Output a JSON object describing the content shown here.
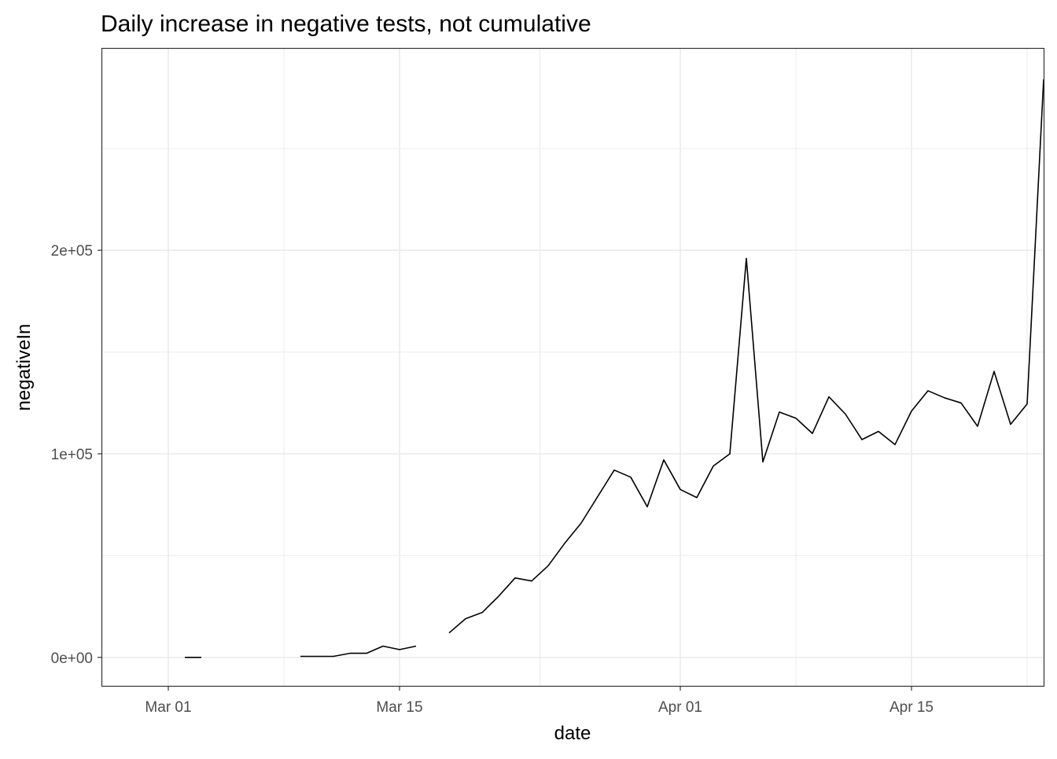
{
  "chart_data": {
    "type": "line",
    "title": "Daily increase in negative tests, not cumulative",
    "xlabel": "date",
    "ylabel": "negativeIn",
    "x_ticks": [
      {
        "date": "2020-03-01",
        "label": "Mar 01"
      },
      {
        "date": "2020-03-15",
        "label": "Mar 15"
      },
      {
        "date": "2020-04-01",
        "label": "Apr 01"
      },
      {
        "date": "2020-04-15",
        "label": "Apr 15"
      }
    ],
    "y_ticks": [
      {
        "value": 0,
        "label": "0e+00"
      },
      {
        "value": 100000,
        "label": "1e+05"
      },
      {
        "value": 200000,
        "label": "2e+05"
      }
    ],
    "xlim": [
      "2020-02-26",
      "2020-04-23"
    ],
    "ylim": [
      -14000,
      299000
    ],
    "grid": true,
    "series_color": "#000000",
    "series": [
      {
        "values": [
          {
            "x": "2020-03-02",
            "y": 0
          },
          {
            "x": "2020-03-03",
            "y": 0
          },
          {
            "x": "2020-03-04",
            "y": null
          },
          {
            "x": "2020-03-08",
            "y": null
          },
          {
            "x": "2020-03-09",
            "y": 500
          },
          {
            "x": "2020-03-10",
            "y": 500
          },
          {
            "x": "2020-03-11",
            "y": 500
          },
          {
            "x": "2020-03-12",
            "y": 2000
          },
          {
            "x": "2020-03-13",
            "y": 2000
          },
          {
            "x": "2020-03-14",
            "y": 5500
          },
          {
            "x": "2020-03-15",
            "y": 3800
          },
          {
            "x": "2020-03-16",
            "y": 5500
          },
          {
            "x": "2020-03-17",
            "y": null
          },
          {
            "x": "2020-03-18",
            "y": 12000
          },
          {
            "x": "2020-03-19",
            "y": 19000
          },
          {
            "x": "2020-03-20",
            "y": 22000
          },
          {
            "x": "2020-03-21",
            "y": 30000
          },
          {
            "x": "2020-03-22",
            "y": 39000
          },
          {
            "x": "2020-03-23",
            "y": 37500
          },
          {
            "x": "2020-03-24",
            "y": 45000
          },
          {
            "x": "2020-03-25",
            "y": 56000
          },
          {
            "x": "2020-03-26",
            "y": 66000
          },
          {
            "x": "2020-03-27",
            "y": 79000
          },
          {
            "x": "2020-03-28",
            "y": 92000
          },
          {
            "x": "2020-03-29",
            "y": 88500
          },
          {
            "x": "2020-03-30",
            "y": 74000
          },
          {
            "x": "2020-03-31",
            "y": 97000
          },
          {
            "x": "2020-04-01",
            "y": 82500
          },
          {
            "x": "2020-04-02",
            "y": 78500
          },
          {
            "x": "2020-04-03",
            "y": 94000
          },
          {
            "x": "2020-04-04",
            "y": 100000
          },
          {
            "x": "2020-04-05",
            "y": 196000
          },
          {
            "x": "2020-04-06",
            "y": 96000
          },
          {
            "x": "2020-04-07",
            "y": 120500
          },
          {
            "x": "2020-04-08",
            "y": 117500
          },
          {
            "x": "2020-04-09",
            "y": 110000
          },
          {
            "x": "2020-04-10",
            "y": 128000
          },
          {
            "x": "2020-04-11",
            "y": 119500
          },
          {
            "x": "2020-04-12",
            "y": 107000
          },
          {
            "x": "2020-04-13",
            "y": 111000
          },
          {
            "x": "2020-04-14",
            "y": 104500
          },
          {
            "x": "2020-04-15",
            "y": 121000
          },
          {
            "x": "2020-04-16",
            "y": 131000
          },
          {
            "x": "2020-04-17",
            "y": 127500
          },
          {
            "x": "2020-04-18",
            "y": 125000
          },
          {
            "x": "2020-04-19",
            "y": 113500
          },
          {
            "x": "2020-04-20",
            "y": 140500
          },
          {
            "x": "2020-04-21",
            "y": 114500
          },
          {
            "x": "2020-04-22",
            "y": 124500
          },
          {
            "x": "2020-04-23",
            "y": 284000
          }
        ]
      }
    ]
  }
}
